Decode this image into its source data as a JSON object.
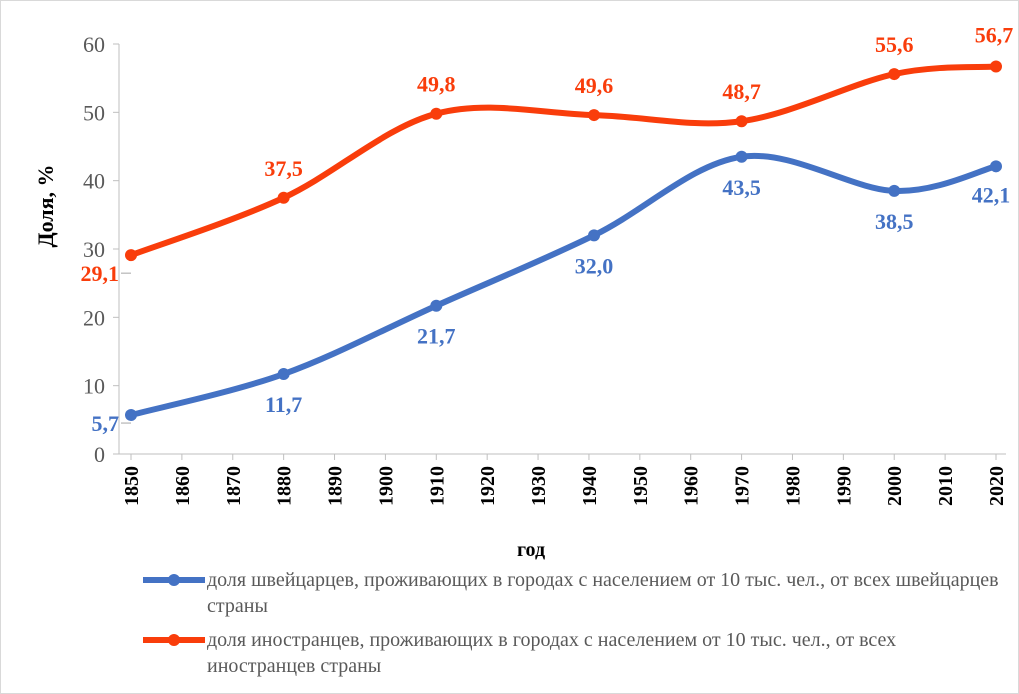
{
  "chart_data": {
    "type": "line",
    "xlabel": "год",
    "ylabel": "Доля, %",
    "x": [
      1850,
      1880,
      1910,
      1941,
      1970,
      2000,
      2020
    ],
    "xlim": [
      1850,
      2020
    ],
    "xticks": [
      1850,
      1860,
      1870,
      1880,
      1890,
      1900,
      1910,
      1920,
      1930,
      1940,
      1950,
      1960,
      1970,
      1980,
      1990,
      2000,
      2010,
      2020
    ],
    "ylim": [
      0,
      60
    ],
    "yticks": [
      0,
      10,
      20,
      30,
      40,
      50,
      60
    ],
    "series": [
      {
        "name": "доля швейцарцев, проживающих в городах с населением от 10 тыс. чел., от всех швейцарцев страны",
        "color": "#4472c4",
        "values": [
          5.7,
          11.7,
          21.7,
          32.0,
          43.5,
          38.5,
          42.1
        ],
        "value_labels": [
          "5,7",
          "11,7",
          "21,7",
          "32,0",
          "43,5",
          "38,5",
          "42,1"
        ]
      },
      {
        "name": "доля иностранцев, проживающих в городах с населением от 10 тыс. чел., от всех иностранцев страны",
        "color": "#f93d0b",
        "values": [
          29.1,
          37.5,
          49.8,
          49.6,
          48.7,
          55.6,
          56.7
        ],
        "value_labels": [
          "29,1",
          "37,5",
          "49,8",
          "49,6",
          "48,7",
          "55,6",
          "56,7"
        ]
      }
    ]
  }
}
